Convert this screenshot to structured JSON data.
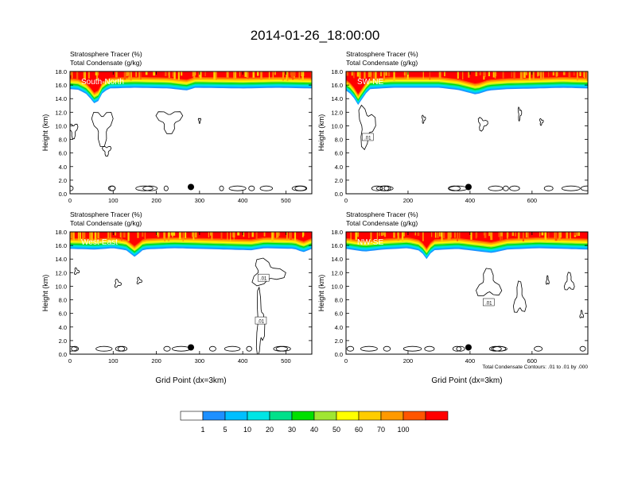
{
  "title": "2014-01-26_18:00:00",
  "colors": {
    "background": "#ffffff",
    "contour": "#000000",
    "marker": "#000000"
  },
  "chart_data": [
    {
      "type": "heatmap",
      "panel": "South-North",
      "left_label_1": "Stratosphere Tracer   (%)",
      "left_label_2": "Total Condensate   (g/kg)",
      "ylabel": "Height (km)",
      "xlabel": "",
      "x_ticks": [
        "0",
        "100",
        "200",
        "300",
        "400",
        "500"
      ],
      "x_tick_values": [
        0,
        100,
        200,
        300,
        400,
        500
      ],
      "xlim": [
        0,
        560
      ],
      "y_ticks": [
        "0.0",
        "2.0",
        "4.0",
        "6.0",
        "8.0",
        "10.0",
        "12.0",
        "14.0",
        "16.0",
        "18.0"
      ],
      "ylim": [
        0,
        18
      ],
      "marker": {
        "x": 280,
        "y": 1.0
      },
      "tracer_top_km": [
        [
          0,
          15.4
        ],
        [
          20,
          15.3
        ],
        [
          40,
          14.6
        ],
        [
          60,
          13.0
        ],
        [
          75,
          14.8
        ],
        [
          90,
          15.5
        ],
        [
          150,
          15.6
        ],
        [
          230,
          15.5
        ],
        [
          270,
          15.2
        ],
        [
          290,
          15.6
        ],
        [
          400,
          15.5
        ],
        [
          480,
          15.6
        ],
        [
          560,
          15.5
        ]
      ],
      "contour_labels": [],
      "footnote": ""
    },
    {
      "type": "heatmap",
      "panel": "SW-NE",
      "left_label_1": "Stratosphere Tracer   (%)",
      "left_label_2": "Total Condensate   (g/kg)",
      "ylabel": "Height (km)",
      "xlabel": "",
      "x_ticks": [
        "0",
        "200",
        "400",
        "600"
      ],
      "x_tick_values": [
        0,
        200,
        400,
        600
      ],
      "xlim": [
        0,
        780
      ],
      "y_ticks": [
        "0.0",
        "2.0",
        "4.0",
        "6.0",
        "8.0",
        "10.0",
        "12.0",
        "14.0",
        "16.0",
        "18.0"
      ],
      "ylim": [
        0,
        18
      ],
      "marker": {
        "x": 395,
        "y": 1.0
      },
      "tracer_top_km": [
        [
          0,
          15.2
        ],
        [
          20,
          14.5
        ],
        [
          40,
          13.0
        ],
        [
          55,
          14.2
        ],
        [
          75,
          15.4
        ],
        [
          150,
          15.6
        ],
        [
          300,
          15.6
        ],
        [
          360,
          15.3
        ],
        [
          420,
          14.6
        ],
        [
          460,
          15.2
        ],
        [
          520,
          15.4
        ],
        [
          620,
          15.5
        ],
        [
          700,
          15.6
        ],
        [
          780,
          15.5
        ]
      ],
      "contour_labels": [
        {
          "text": ".01",
          "x": 70,
          "y": 8.3
        }
      ],
      "footnote": ""
    },
    {
      "type": "heatmap",
      "panel": "West-East",
      "left_label_1": "Stratosphere Tracer   (%)",
      "left_label_2": "Total Condensate   (g/kg)",
      "ylabel": "Height (km)",
      "xlabel": "Grid Point (dx=3km)",
      "x_ticks": [
        "0",
        "100",
        "200",
        "300",
        "400",
        "500"
      ],
      "x_tick_values": [
        0,
        100,
        200,
        300,
        400,
        500
      ],
      "xlim": [
        0,
        560
      ],
      "y_ticks": [
        "0.0",
        "2.0",
        "4.0",
        "6.0",
        "8.0",
        "10.0",
        "12.0",
        "14.0",
        "16.0",
        "18.0"
      ],
      "ylim": [
        0,
        18
      ],
      "marker": {
        "x": 280,
        "y": 1.0
      },
      "tracer_top_km": [
        [
          0,
          15.5
        ],
        [
          60,
          15.4
        ],
        [
          100,
          15.6
        ],
        [
          130,
          15.3
        ],
        [
          150,
          14.3
        ],
        [
          170,
          15.4
        ],
        [
          240,
          15.6
        ],
        [
          300,
          15.5
        ],
        [
          420,
          15.3
        ],
        [
          450,
          15.6
        ],
        [
          520,
          15.5
        ],
        [
          540,
          15.0
        ],
        [
          560,
          15.5
        ]
      ],
      "contour_labels": [
        {
          "text": ".01",
          "x": 448,
          "y": 11.2
        },
        {
          "text": ".01",
          "x": 442,
          "y": 4.9
        }
      ],
      "footnote": ""
    },
    {
      "type": "heatmap",
      "panel": "NW-SE",
      "left_label_1": "Stratosphere Tracer   (%)",
      "left_label_2": "Total Condensate   (g/kg)",
      "ylabel": "Height (km)",
      "xlabel": "Grid Point (dx=3km)",
      "x_ticks": [
        "0",
        "200",
        "400",
        "600"
      ],
      "x_tick_values": [
        0,
        200,
        400,
        600
      ],
      "xlim": [
        0,
        780
      ],
      "y_ticks": [
        "0.0",
        "2.0",
        "4.0",
        "6.0",
        "8.0",
        "10.0",
        "12.0",
        "14.0",
        "16.0",
        "18.0"
      ],
      "ylim": [
        0,
        18
      ],
      "marker": {
        "x": 395,
        "y": 1.0
      },
      "tracer_top_km": [
        [
          0,
          15.5
        ],
        [
          60,
          15.1
        ],
        [
          120,
          15.4
        ],
        [
          200,
          15.6
        ],
        [
          240,
          15.2
        ],
        [
          260,
          14.0
        ],
        [
          280,
          15.3
        ],
        [
          360,
          15.5
        ],
        [
          470,
          14.9
        ],
        [
          520,
          15.4
        ],
        [
          620,
          15.6
        ],
        [
          780,
          15.4
        ]
      ],
      "contour_labels": [
        {
          "text": ".01",
          "x": 460,
          "y": 7.6
        }
      ],
      "footnote": "Total Condensate Contours: .01 to .01 by .000"
    }
  ],
  "colorbar": {
    "labels": [
      "1",
      "5",
      "10",
      "20",
      "30",
      "40",
      "50",
      "60",
      "70",
      "100"
    ],
    "colors": [
      "#ffffff",
      "#1e90ff",
      "#00bfff",
      "#00e5e5",
      "#00e08a",
      "#00e000",
      "#a0e632",
      "#ffff00",
      "#ffcc00",
      "#ff9900",
      "#ff5500",
      "#ff0000"
    ]
  }
}
